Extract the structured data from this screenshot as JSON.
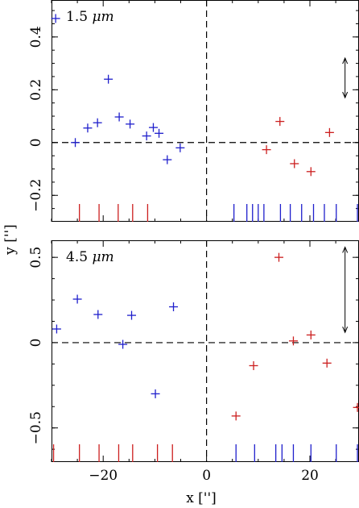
{
  "chart_data": [
    {
      "type": "scatter",
      "label_value": "1.5",
      "label_unit": "μm",
      "xlim": [
        -30,
        29.5
      ],
      "ylim": [
        -0.3,
        0.54
      ],
      "xticks": [
        -20,
        0,
        20
      ],
      "yticks": [
        -0.2,
        0,
        0.2,
        0.4
      ],
      "ytick_labels": [
        "−0.2",
        "0",
        "0.2",
        "0.4"
      ],
      "series": [
        {
          "color": "#1f1fcc",
          "points": [
            {
              "x": -29.2,
              "y": 0.47
            },
            {
              "x": -25.4,
              "y": 0.0
            },
            {
              "x": -23.0,
              "y": 0.055
            },
            {
              "x": -21.1,
              "y": 0.075
            },
            {
              "x": -19.0,
              "y": 0.24
            },
            {
              "x": -16.9,
              "y": 0.097
            },
            {
              "x": -14.8,
              "y": 0.07
            },
            {
              "x": -11.6,
              "y": 0.025
            },
            {
              "x": -10.3,
              "y": 0.057
            },
            {
              "x": -9.2,
              "y": 0.035
            },
            {
              "x": -7.6,
              "y": -0.065
            },
            {
              "x": -5.1,
              "y": -0.02
            }
          ]
        },
        {
          "color": "#cc1f1f",
          "points": [
            {
              "x": 11.6,
              "y": -0.027
            },
            {
              "x": 14.2,
              "y": 0.08
            },
            {
              "x": 17.0,
              "y": -0.08
            },
            {
              "x": 20.2,
              "y": -0.11
            },
            {
              "x": 23.8,
              "y": 0.038
            }
          ]
        }
      ],
      "ticks_red_x": [
        -24.6,
        -20.8,
        -17.1,
        -14.3,
        -11.4
      ],
      "ticks_blue_x": [
        5.3,
        7.8,
        8.9,
        10.0,
        11.1,
        14.3,
        16.2,
        18.4,
        20.7,
        22.8,
        25.1,
        29.2
      ],
      "errorbar": {
        "x": 26.8,
        "y_low": 0.17,
        "y_high": 0.32
      }
    },
    {
      "type": "scatter",
      "label_value": "4.5",
      "label_unit": "μm",
      "xlim": [
        -30,
        29.5
      ],
      "ylim": [
        -0.7,
        0.6
      ],
      "xticks": [
        -20,
        0,
        20
      ],
      "yticks": [
        -0.5,
        0,
        0.5
      ],
      "ytick_labels": [
        "−0.5",
        "0",
        "0.5"
      ],
      "series": [
        {
          "color": "#1f1fcc",
          "points": [
            {
              "x": -29.0,
              "y": 0.08
            },
            {
              "x": -25.0,
              "y": 0.255
            },
            {
              "x": -21.0,
              "y": 0.165
            },
            {
              "x": -16.2,
              "y": -0.01
            },
            {
              "x": -14.5,
              "y": 0.16
            },
            {
              "x": -9.9,
              "y": -0.3
            },
            {
              "x": -6.4,
              "y": 0.21
            }
          ]
        },
        {
          "color": "#cc1f1f",
          "points": [
            {
              "x": 5.7,
              "y": -0.43
            },
            {
              "x": 9.1,
              "y": -0.135
            },
            {
              "x": 14.0,
              "y": 0.5
            },
            {
              "x": 16.8,
              "y": 0.01
            },
            {
              "x": 20.2,
              "y": 0.045
            },
            {
              "x": 23.3,
              "y": -0.12
            },
            {
              "x": 29.2,
              "y": -0.38
            }
          ]
        }
      ],
      "ticks_red_x": [
        -29.6,
        -24.6,
        -20.8,
        -17.0,
        -14.3,
        -9.5,
        -6.6
      ],
      "ticks_blue_x": [
        5.7,
        9.3,
        13.4,
        14.6,
        16.8,
        20.2,
        25.1,
        29.2
      ],
      "errorbar": {
        "x": 26.8,
        "y_low": 0.06,
        "y_high": 0.56
      }
    }
  ],
  "axes": {
    "xlabel": "x ['']",
    "ylabel": "y ['']"
  }
}
